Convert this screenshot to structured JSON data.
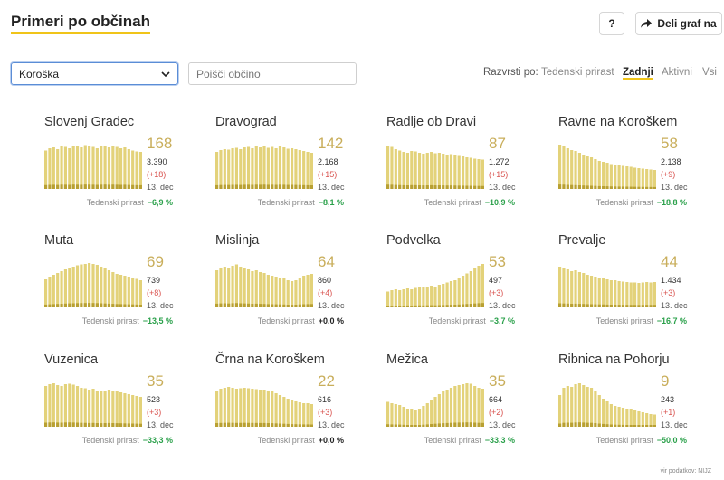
{
  "header": {
    "title": "Primeri po občinah",
    "help_label": "?",
    "share_label": "Deli graf na"
  },
  "controls": {
    "region_selected": "Koroška",
    "search_placeholder": "Poišči občino",
    "sort_label": "Razvrsti po:",
    "sort_options": [
      "Tedenski prirast",
      "Zadnji",
      "Aktivni",
      "Vsi"
    ],
    "sort_active": "Zadnji"
  },
  "weekly_label": "Tedenski prirast",
  "colors": {
    "accent": "#f0c419",
    "bar": "#e3d27a",
    "bar_dark": "#b8a032",
    "number": "#c9ae5b",
    "positive": "#2aa04a",
    "delta": "#d9534f"
  },
  "cards": [
    {
      "name": "Slovenj Gradec",
      "latest": "168",
      "total": "3.390",
      "delta": "(+18)",
      "date": "13. dec",
      "weekly": "−6,9 %",
      "trend": [
        0.85,
        0.9,
        0.92,
        0.88,
        0.95,
        0.93,
        0.9,
        0.96,
        0.94,
        0.92,
        0.97,
        0.95,
        0.93,
        0.9,
        0.94,
        0.96,
        0.92,
        0.95,
        0.93,
        0.9,
        0.92,
        0.88,
        0.85,
        0.83,
        0.82
      ]
    },
    {
      "name": "Dravograd",
      "latest": "142",
      "total": "2.168",
      "delta": "(+15)",
      "date": "13. dec",
      "weekly": "−8,1 %",
      "trend": [
        0.82,
        0.86,
        0.88,
        0.87,
        0.9,
        0.91,
        0.88,
        0.92,
        0.93,
        0.9,
        0.94,
        0.92,
        0.95,
        0.91,
        0.93,
        0.9,
        0.94,
        0.92,
        0.89,
        0.9,
        0.88,
        0.86,
        0.84,
        0.82,
        0.8
      ]
    },
    {
      "name": "Radlje ob Dravi",
      "latest": "87",
      "total": "1.272",
      "delta": "(+15)",
      "date": "13. dec",
      "weekly": "−10,9 %",
      "trend": [
        0.95,
        0.93,
        0.88,
        0.85,
        0.82,
        0.8,
        0.84,
        0.83,
        0.8,
        0.78,
        0.8,
        0.82,
        0.79,
        0.8,
        0.78,
        0.76,
        0.77,
        0.75,
        0.73,
        0.72,
        0.7,
        0.69,
        0.67,
        0.66,
        0.65
      ]
    },
    {
      "name": "Ravne na Koroškem",
      "latest": "58",
      "total": "2.138",
      "delta": "(+9)",
      "date": "13. dec",
      "weekly": "−18,8 %",
      "trend": [
        0.98,
        0.95,
        0.9,
        0.86,
        0.84,
        0.8,
        0.76,
        0.72,
        0.7,
        0.66,
        0.62,
        0.6,
        0.58,
        0.55,
        0.54,
        0.52,
        0.51,
        0.5,
        0.49,
        0.47,
        0.46,
        0.45,
        0.44,
        0.43,
        0.42
      ]
    },
    {
      "name": "Muta",
      "latest": "69",
      "total": "739",
      "delta": "(+8)",
      "date": "13. dec",
      "weekly": "−13,5 %",
      "trend": [
        0.62,
        0.68,
        0.72,
        0.76,
        0.8,
        0.84,
        0.88,
        0.9,
        0.93,
        0.95,
        0.96,
        0.98,
        0.96,
        0.94,
        0.9,
        0.86,
        0.82,
        0.78,
        0.74,
        0.72,
        0.7,
        0.68,
        0.66,
        0.63,
        0.6
      ]
    },
    {
      "name": "Mislinja",
      "latest": "64",
      "total": "860",
      "delta": "(+4)",
      "date": "13. dec",
      "weekly": "+0,0 %",
      "neutral": true,
      "trend": [
        0.82,
        0.88,
        0.9,
        0.86,
        0.92,
        0.95,
        0.9,
        0.87,
        0.84,
        0.8,
        0.82,
        0.78,
        0.76,
        0.72,
        0.7,
        0.68,
        0.66,
        0.64,
        0.6,
        0.58,
        0.6,
        0.66,
        0.7,
        0.72,
        0.74
      ]
    },
    {
      "name": "Podvelka",
      "latest": "53",
      "total": "497",
      "delta": "(+3)",
      "date": "13. dec",
      "weekly": "−3,7 %",
      "trend": [
        0.35,
        0.38,
        0.4,
        0.38,
        0.4,
        0.42,
        0.4,
        0.43,
        0.45,
        0.44,
        0.46,
        0.48,
        0.46,
        0.5,
        0.52,
        0.55,
        0.58,
        0.6,
        0.64,
        0.7,
        0.75,
        0.8,
        0.86,
        0.92,
        0.96
      ]
    },
    {
      "name": "Prevalje",
      "latest": "44",
      "total": "1.434",
      "delta": "(+3)",
      "date": "13. dec",
      "weekly": "−16,7 %",
      "trend": [
        0.9,
        0.86,
        0.84,
        0.8,
        0.82,
        0.78,
        0.76,
        0.72,
        0.7,
        0.68,
        0.66,
        0.65,
        0.62,
        0.6,
        0.6,
        0.58,
        0.57,
        0.56,
        0.55,
        0.55,
        0.54,
        0.55,
        0.56,
        0.55,
        0.56
      ]
    },
    {
      "name": "Vuzenica",
      "latest": "35",
      "total": "523",
      "delta": "(+3)",
      "date": "13. dec",
      "weekly": "−33,3 %",
      "trend": [
        0.9,
        0.94,
        0.96,
        0.92,
        0.9,
        0.94,
        0.95,
        0.93,
        0.9,
        0.86,
        0.85,
        0.82,
        0.84,
        0.8,
        0.78,
        0.8,
        0.82,
        0.8,
        0.78,
        0.76,
        0.74,
        0.72,
        0.7,
        0.68,
        0.66
      ]
    },
    {
      "name": "Črna na Koroškem",
      "latest": "22",
      "total": "616",
      "delta": "(+3)",
      "date": "13. dec",
      "weekly": "+0,0 %",
      "neutral": true,
      "trend": [
        0.8,
        0.84,
        0.86,
        0.88,
        0.86,
        0.84,
        0.85,
        0.86,
        0.85,
        0.84,
        0.83,
        0.82,
        0.82,
        0.8,
        0.78,
        0.74,
        0.7,
        0.66,
        0.62,
        0.58,
        0.56,
        0.54,
        0.52,
        0.52,
        0.5
      ]
    },
    {
      "name": "Mežica",
      "latest": "35",
      "total": "664",
      "delta": "(+2)",
      "date": "13. dec",
      "weekly": "−33,3 %",
      "trend": [
        0.55,
        0.52,
        0.5,
        0.48,
        0.44,
        0.4,
        0.38,
        0.36,
        0.4,
        0.46,
        0.52,
        0.6,
        0.66,
        0.72,
        0.78,
        0.82,
        0.86,
        0.9,
        0.92,
        0.94,
        0.96,
        0.95,
        0.9,
        0.86,
        0.84
      ]
    },
    {
      "name": "Ribnica na Pohorju",
      "latest": "9",
      "total": "243",
      "delta": "(+1)",
      "date": "13. dec",
      "weekly": "−50,0 %",
      "trend": [
        0.7,
        0.86,
        0.9,
        0.88,
        0.94,
        0.96,
        0.92,
        0.88,
        0.86,
        0.8,
        0.7,
        0.62,
        0.56,
        0.5,
        0.46,
        0.44,
        0.42,
        0.4,
        0.38,
        0.36,
        0.34,
        0.32,
        0.3,
        0.28,
        0.27
      ]
    }
  ],
  "source": "vir podatkov: NIJZ"
}
